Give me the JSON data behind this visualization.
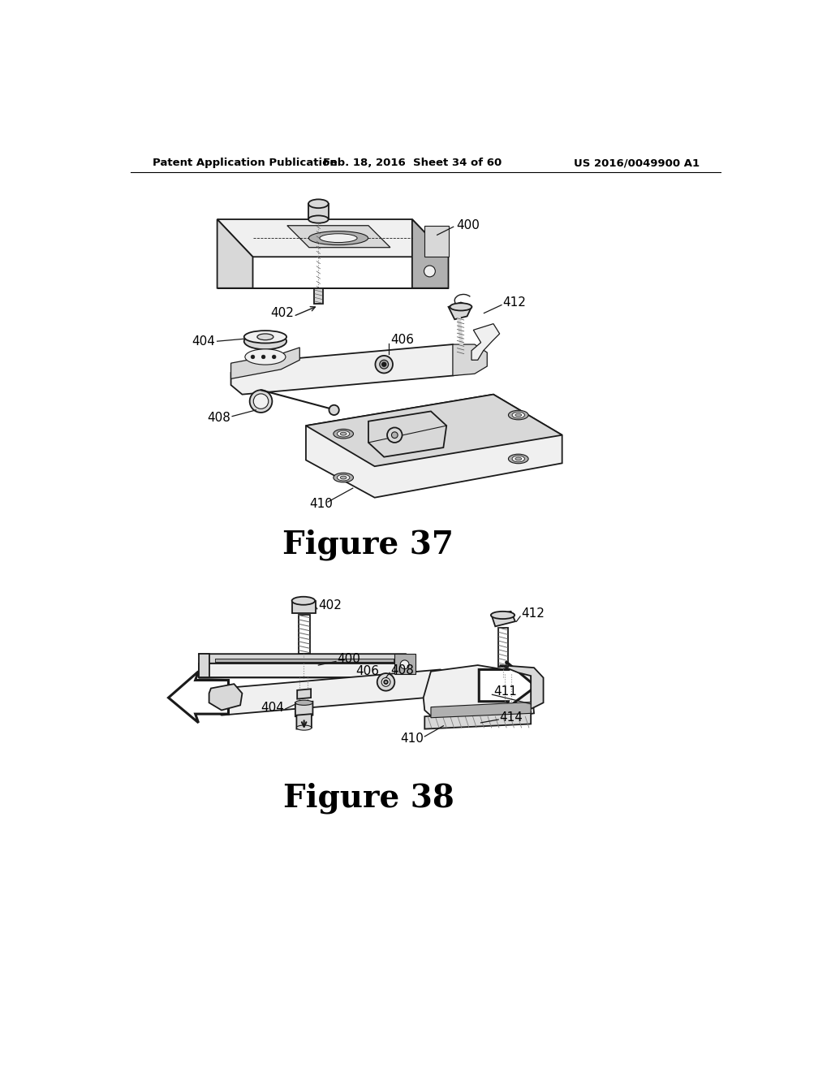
{
  "bg_color": "#ffffff",
  "header_left": "Patent Application Publication",
  "header_center": "Feb. 18, 2016  Sheet 34 of 60",
  "header_right": "US 2016/0049900 A1",
  "fig37_title": "Figure 37",
  "fig38_title": "Figure 38",
  "line_color": "#1a1a1a",
  "fill_light": "#f0f0f0",
  "fill_mid": "#d8d8d8",
  "fill_dark": "#b0b0b0"
}
